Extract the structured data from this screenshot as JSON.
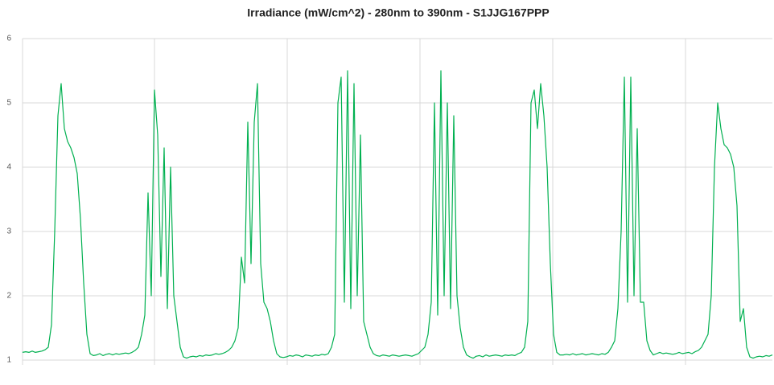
{
  "chart_data": {
    "type": "line",
    "title": "Irradiance (mW/cm^2) - 280nm to 390nm - S1JJG167PPP",
    "series": [
      {
        "color": "#00b050",
        "values": [
          1.12,
          1.13,
          1.12,
          1.14,
          1.12,
          1.13,
          1.14,
          1.16,
          1.2,
          1.55,
          3.0,
          4.8,
          5.3,
          4.6,
          4.4,
          4.3,
          4.15,
          3.9,
          3.2,
          2.2,
          1.4,
          1.1,
          1.07,
          1.08,
          1.1,
          1.07,
          1.09,
          1.1,
          1.08,
          1.1,
          1.09,
          1.1,
          1.11,
          1.1,
          1.12,
          1.15,
          1.2,
          1.4,
          1.7,
          3.6,
          2.0,
          5.2,
          4.5,
          2.3,
          4.3,
          1.8,
          4.0,
          2.0,
          1.6,
          1.2,
          1.05,
          1.03,
          1.05,
          1.06,
          1.05,
          1.07,
          1.06,
          1.08,
          1.07,
          1.08,
          1.1,
          1.09,
          1.1,
          1.12,
          1.15,
          1.2,
          1.3,
          1.5,
          2.6,
          2.2,
          4.7,
          2.5,
          4.7,
          5.3,
          2.5,
          1.9,
          1.8,
          1.6,
          1.3,
          1.1,
          1.05,
          1.04,
          1.05,
          1.07,
          1.06,
          1.08,
          1.07,
          1.05,
          1.08,
          1.07,
          1.06,
          1.08,
          1.07,
          1.09,
          1.08,
          1.1,
          1.2,
          1.4,
          5.0,
          5.4,
          1.9,
          5.5,
          1.8,
          5.3,
          2.0,
          4.5,
          1.6,
          1.4,
          1.2,
          1.1,
          1.07,
          1.06,
          1.08,
          1.07,
          1.06,
          1.08,
          1.07,
          1.06,
          1.07,
          1.08,
          1.07,
          1.06,
          1.08,
          1.1,
          1.15,
          1.2,
          1.4,
          1.9,
          5.0,
          1.7,
          5.5,
          2.0,
          5.0,
          1.8,
          4.8,
          2.0,
          1.5,
          1.2,
          1.08,
          1.05,
          1.03,
          1.06,
          1.07,
          1.05,
          1.08,
          1.06,
          1.07,
          1.08,
          1.07,
          1.06,
          1.08,
          1.07,
          1.08,
          1.07,
          1.1,
          1.12,
          1.2,
          1.6,
          5.0,
          5.2,
          4.6,
          5.3,
          4.8,
          4.0,
          2.5,
          1.4,
          1.12,
          1.08,
          1.08,
          1.09,
          1.08,
          1.1,
          1.08,
          1.09,
          1.1,
          1.08,
          1.09,
          1.1,
          1.09,
          1.08,
          1.1,
          1.09,
          1.12,
          1.2,
          1.3,
          1.8,
          3.0,
          5.4,
          1.9,
          5.4,
          2.0,
          4.6,
          1.9,
          1.9,
          1.3,
          1.15,
          1.08,
          1.1,
          1.12,
          1.1,
          1.11,
          1.1,
          1.09,
          1.1,
          1.12,
          1.1,
          1.11,
          1.12,
          1.1,
          1.13,
          1.15,
          1.2,
          1.3,
          1.4,
          2.0,
          4.0,
          5.0,
          4.6,
          4.35,
          4.3,
          4.2,
          4.0,
          3.4,
          1.6,
          1.8,
          1.2,
          1.05,
          1.03,
          1.05,
          1.06,
          1.05,
          1.07,
          1.06,
          1.08
        ]
      }
    ],
    "ylim": [
      1,
      6
    ],
    "yticks": [
      1,
      2,
      3,
      4,
      5,
      6
    ],
    "grid": true
  }
}
